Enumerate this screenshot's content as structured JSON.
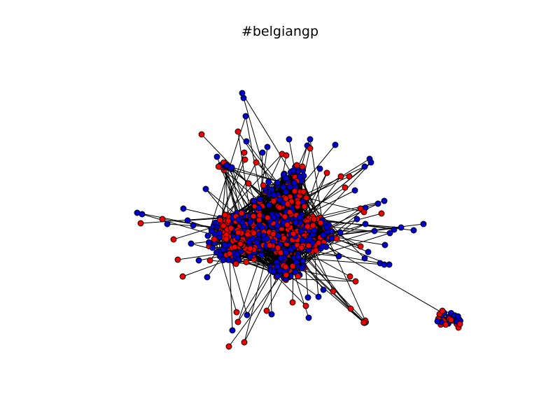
{
  "figure": {
    "title": "#belgiangp"
  },
  "legend": {
    "colors": {
      "red": "#ee0000",
      "blue": "#0000cc",
      "edge": "#000000",
      "background": "#ffffff"
    }
  }
}
